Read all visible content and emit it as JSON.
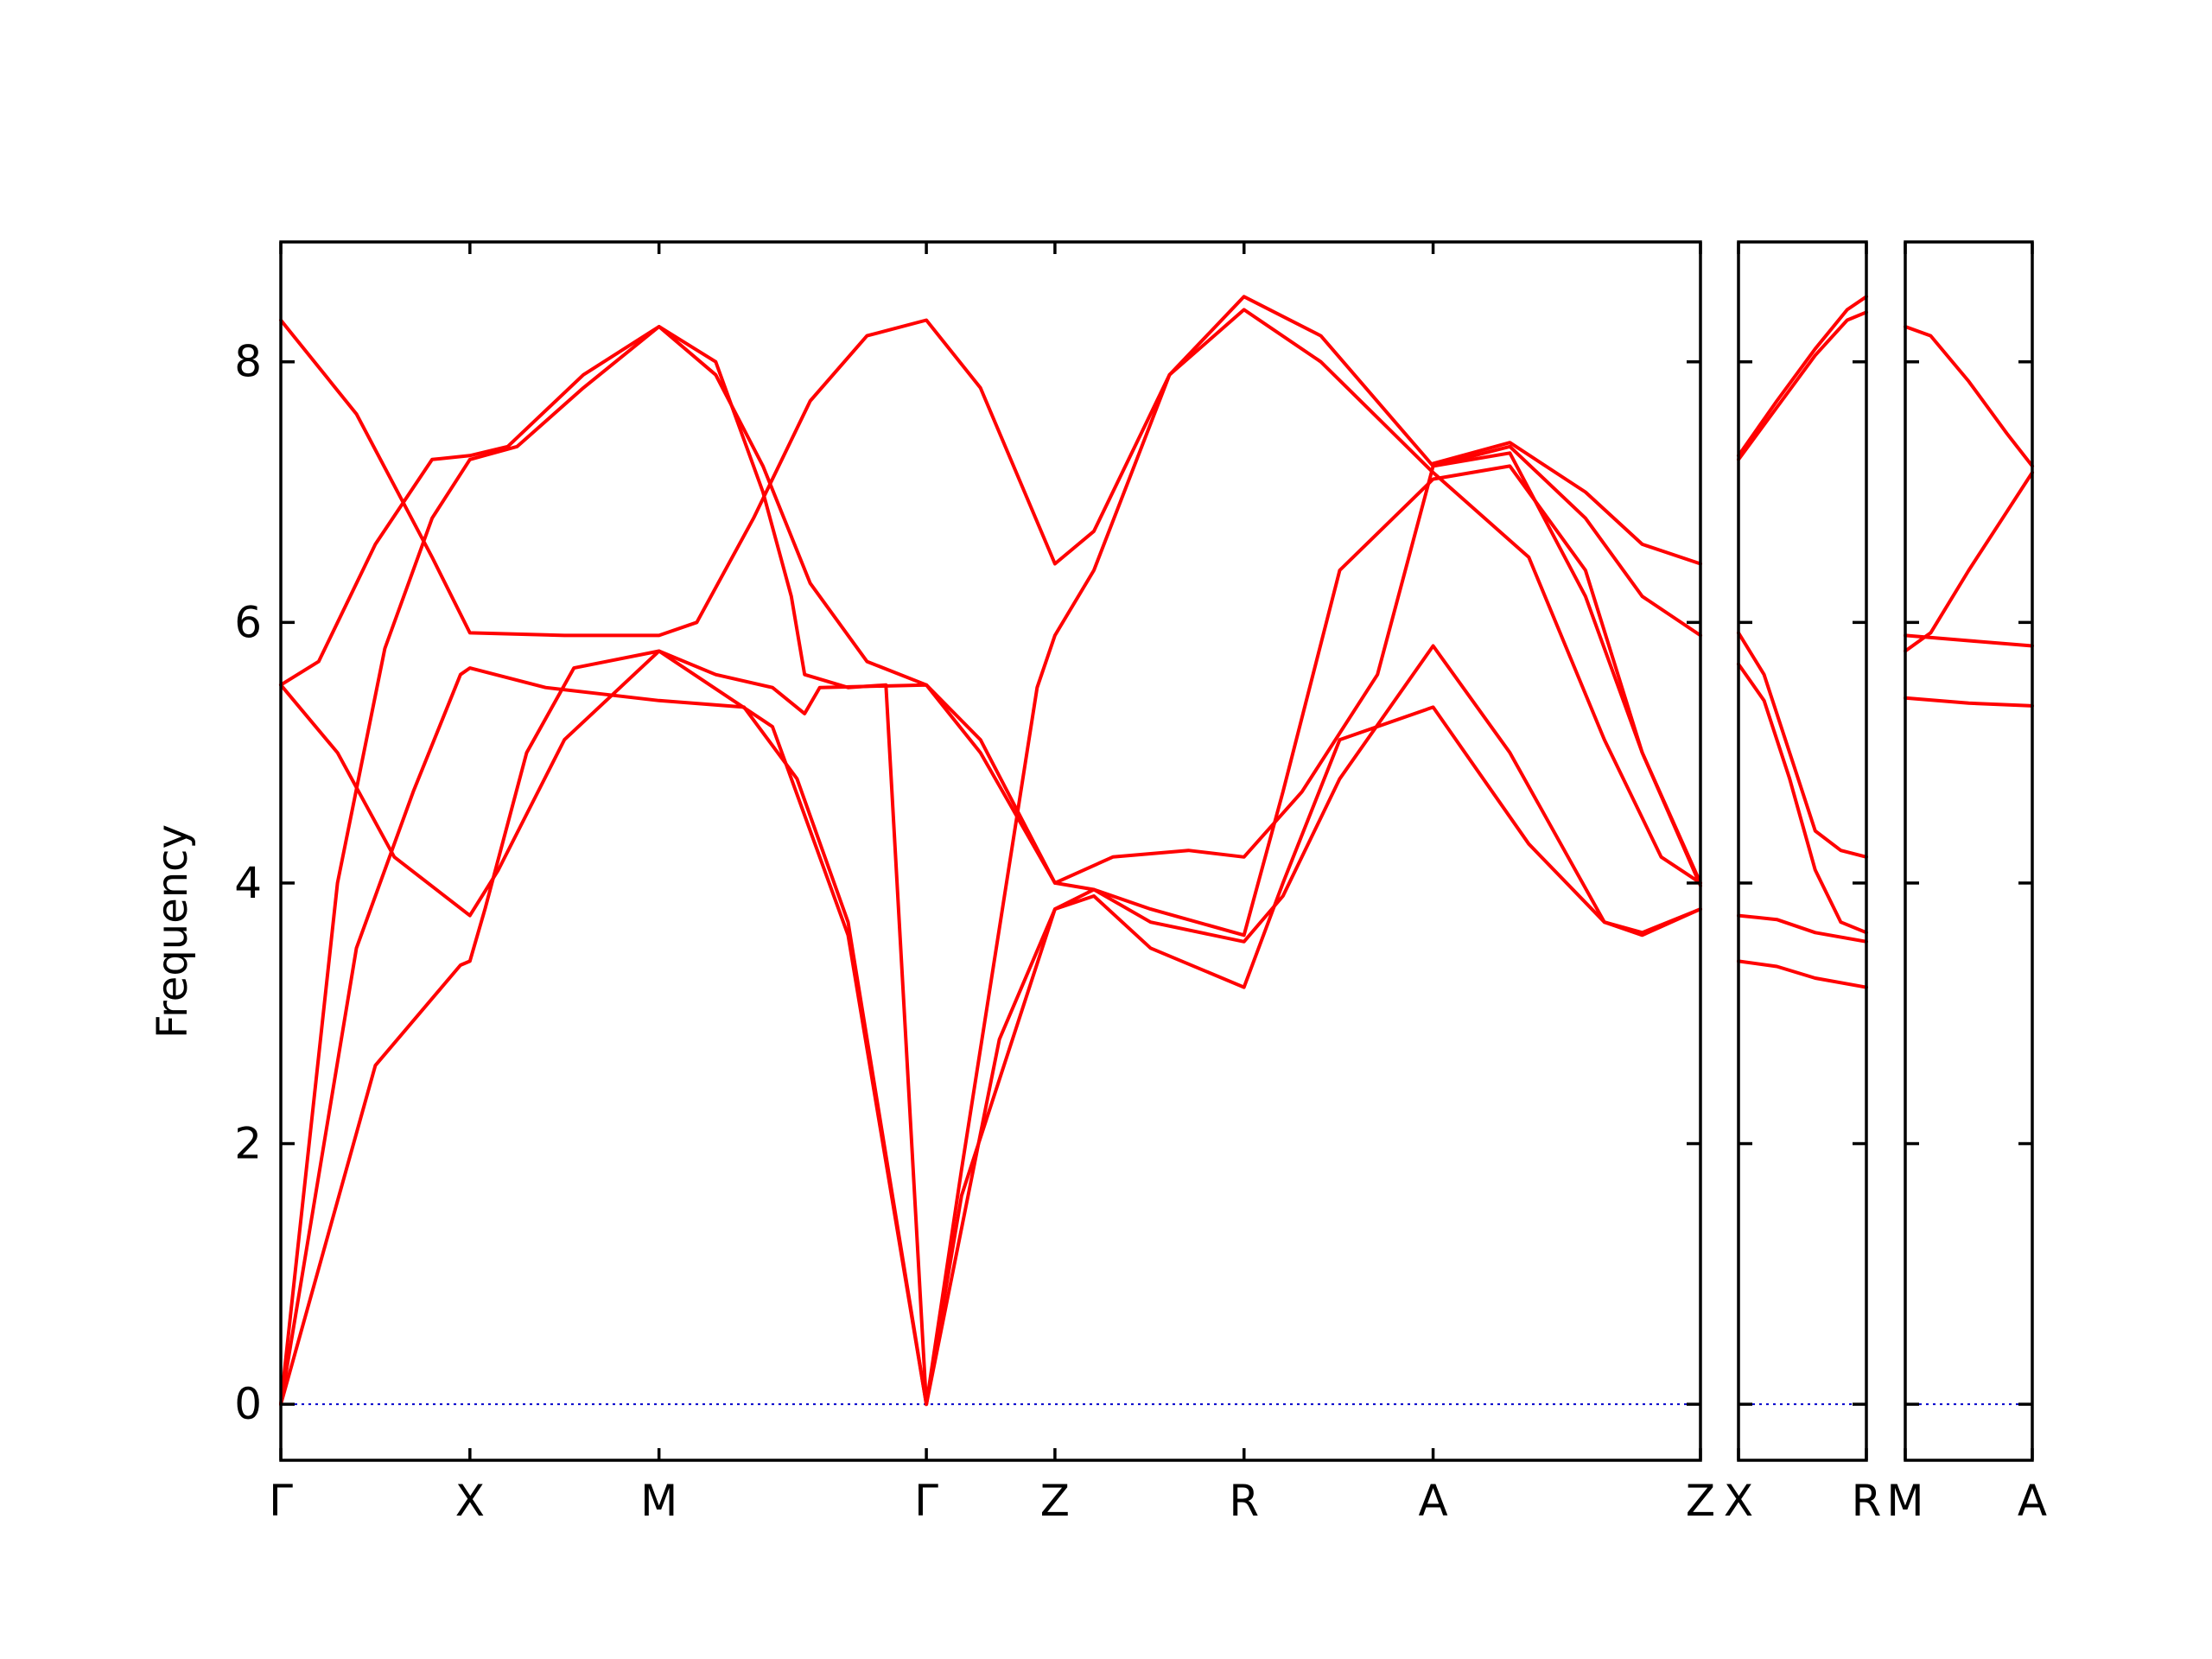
{
  "chart_data": {
    "type": "line",
    "title": "",
    "xlabel": "",
    "ylabel": "Frequency",
    "ylim": [
      -0.43,
      8.92
    ],
    "yticks": [
      0,
      2,
      4,
      6,
      8
    ],
    "grid": false,
    "legend": "none",
    "colors": {
      "band": "#ff0000",
      "zero_line": "#0000cc",
      "axes": "#000000"
    },
    "panels": [
      {
        "labels": [
          "Γ",
          "X",
          "M",
          "Γ",
          "Z",
          "R",
          "A",
          "Z"
        ],
        "segments": [
          {
            "from": "Γ",
            "to": "X",
            "length": 1.0
          },
          {
            "from": "X",
            "to": "M",
            "length": 1.0
          },
          {
            "from": "M",
            "to": "Γ",
            "length": 1.414
          },
          {
            "from": "Γ",
            "to": "Z",
            "length": 0.68
          },
          {
            "from": "Z",
            "to": "R",
            "length": 1.0
          },
          {
            "from": "R",
            "to": "A",
            "length": 1.0
          },
          {
            "from": "A",
            "to": "Z",
            "length": 1.414
          }
        ],
        "series": [
          {
            "values": [
              [
                0,
                0
              ],
              [
                0.5,
                2.6
              ],
              [
                0.95,
                3.37
              ],
              [
                1.0,
                3.4
              ],
              [
                1.08,
                3.8
              ],
              [
                1.3,
                5.0
              ],
              [
                1.55,
                5.65
              ],
              [
                2.0,
                5.78
              ],
              [
                2.6,
                5.2
              ],
              [
                3.0,
                3.6
              ],
              [
                3.414,
                0
              ],
              [
                3.8,
                2.8
              ],
              [
                4.094,
                3.8
              ],
              [
                4.3,
                3.9
              ],
              [
                4.6,
                3.5
              ],
              [
                5.094,
                3.2
              ],
              [
                5.3,
                4.0
              ],
              [
                5.6,
                5.1
              ],
              [
                6.094,
                5.35
              ],
              [
                6.6,
                4.3
              ],
              [
                7.0,
                3.7
              ],
              [
                7.2,
                3.62
              ],
              [
                7.508,
                3.8
              ]
            ]
          },
          {
            "values": [
              [
                0,
                0
              ],
              [
                0.4,
                3.5
              ],
              [
                0.7,
                4.7
              ],
              [
                0.95,
                5.6
              ],
              [
                1.0,
                5.65
              ],
              [
                1.4,
                5.5
              ],
              [
                2.0,
                5.4
              ],
              [
                2.45,
                5.35
              ],
              [
                2.73,
                4.8
              ],
              [
                3.0,
                3.7
              ],
              [
                3.414,
                0
              ],
              [
                3.6,
                1.6
              ],
              [
                4.094,
                3.8
              ],
              [
                4.3,
                3.95
              ],
              [
                4.6,
                3.7
              ],
              [
                5.094,
                3.55
              ],
              [
                5.3,
                3.9
              ],
              [
                5.6,
                4.8
              ],
              [
                6.094,
                5.82
              ],
              [
                6.5,
                5.0
              ],
              [
                7.0,
                3.7
              ],
              [
                7.2,
                3.6
              ],
              [
                7.508,
                3.8
              ]
            ]
          },
          {
            "values": [
              [
                0,
                0
              ],
              [
                0.3,
                4.0
              ],
              [
                0.55,
                5.8
              ],
              [
                0.8,
                6.8
              ],
              [
                1.0,
                7.25
              ],
              [
                1.25,
                7.35
              ],
              [
                1.6,
                7.8
              ],
              [
                2.0,
                8.27
              ],
              [
                2.3,
                8.0
              ],
              [
                2.55,
                7.0
              ],
              [
                2.7,
                6.2
              ],
              [
                2.77,
                5.6
              ],
              [
                3.0,
                5.5
              ],
              [
                3.2,
                5.52
              ],
              [
                3.414,
                0
              ],
              [
                3.6,
                1.8
              ],
              [
                4.0,
                5.5
              ],
              [
                4.094,
                5.9
              ],
              [
                4.3,
                6.4
              ],
              [
                4.7,
                7.9
              ],
              [
                5.094,
                8.4
              ],
              [
                5.5,
                8.0
              ],
              [
                6.094,
                7.15
              ],
              [
                6.6,
                6.5
              ],
              [
                7.0,
                5.1
              ],
              [
                7.3,
                4.2
              ],
              [
                7.508,
                4.0
              ]
            ]
          },
          {
            "values": [
              [
                0,
                5.52
              ],
              [
                0.2,
                5.7
              ],
              [
                0.5,
                6.6
              ],
              [
                0.8,
                7.25
              ],
              [
                1.0,
                7.28
              ],
              [
                1.2,
                7.35
              ],
              [
                1.6,
                7.9
              ],
              [
                2.0,
                8.27
              ],
              [
                2.3,
                7.9
              ],
              [
                2.55,
                7.2
              ],
              [
                2.8,
                6.3
              ],
              [
                3.1,
                5.7
              ],
              [
                3.414,
                5.52
              ],
              [
                3.7,
                5.0
              ],
              [
                4.094,
                4.0
              ],
              [
                4.3,
                3.95
              ],
              [
                4.6,
                3.8
              ],
              [
                5.094,
                3.6
              ],
              [
                5.3,
                4.7
              ],
              [
                5.6,
                6.4
              ],
              [
                6.094,
                7.1
              ],
              [
                6.5,
                7.2
              ],
              [
                6.9,
                6.4
              ],
              [
                7.2,
                5.0
              ],
              [
                7.508,
                3.98
              ]
            ]
          },
          {
            "values": [
              [
                0,
                5.52
              ],
              [
                0.3,
                5.0
              ],
              [
                0.6,
                4.2
              ],
              [
                1.0,
                3.75
              ],
              [
                1.15,
                4.1
              ],
              [
                1.5,
                5.1
              ],
              [
                2.0,
                5.78
              ],
              [
                2.3,
                5.6
              ],
              [
                2.6,
                5.5
              ],
              [
                2.77,
                5.3
              ],
              [
                2.85,
                5.5
              ],
              [
                3.414,
                5.52
              ],
              [
                3.7,
                5.1
              ],
              [
                4.094,
                4.0
              ],
              [
                4.4,
                4.2
              ],
              [
                4.8,
                4.25
              ],
              [
                5.094,
                4.2
              ],
              [
                5.4,
                4.7
              ],
              [
                5.8,
                5.6
              ],
              [
                6.094,
                7.2
              ],
              [
                6.5,
                7.3
              ],
              [
                6.9,
                6.2
              ],
              [
                7.2,
                5.0
              ],
              [
                7.508,
                4.0
              ]
            ]
          },
          {
            "values": [
              [
                0,
                8.32
              ],
              [
                0.4,
                7.6
              ],
              [
                0.8,
                6.5
              ],
              [
                1.0,
                5.92
              ],
              [
                1.5,
                5.9
              ],
              [
                2.0,
                5.9
              ],
              [
                2.2,
                6.0
              ],
              [
                2.5,
                6.8
              ],
              [
                2.8,
                7.7
              ],
              [
                3.1,
                8.2
              ],
              [
                3.414,
                8.32
              ],
              [
                3.7,
                7.8
              ],
              [
                4.094,
                6.45
              ],
              [
                4.3,
                6.7
              ],
              [
                4.7,
                7.9
              ],
              [
                5.094,
                8.5
              ],
              [
                5.5,
                8.2
              ],
              [
                6.094,
                7.2
              ],
              [
                6.5,
                7.35
              ],
              [
                6.9,
                6.8
              ],
              [
                7.2,
                6.2
              ],
              [
                7.508,
                5.9
              ]
            ]
          },
          {
            "values": [
              [
                6.094,
                7.22
              ],
              [
                6.5,
                7.38
              ],
              [
                6.9,
                7.0
              ],
              [
                7.2,
                6.6
              ],
              [
                7.508,
                6.45
              ]
            ]
          }
        ]
      },
      {
        "labels": [
          "X",
          "R"
        ],
        "segments": [
          {
            "from": "X",
            "to": "R",
            "length": 1.0
          }
        ],
        "series": [
          {
            "values": [
              [
                0,
                7.28
              ],
              [
                0.3,
                7.7
              ],
              [
                0.6,
                8.1
              ],
              [
                0.85,
                8.4
              ],
              [
                1.0,
                8.5
              ]
            ]
          },
          {
            "values": [
              [
                0,
                7.25
              ],
              [
                0.3,
                7.65
              ],
              [
                0.6,
                8.05
              ],
              [
                0.85,
                8.32
              ],
              [
                1.0,
                8.38
              ]
            ]
          },
          {
            "values": [
              [
                0,
                5.92
              ],
              [
                0.2,
                5.6
              ],
              [
                0.4,
                5.0
              ],
              [
                0.6,
                4.4
              ],
              [
                0.8,
                4.25
              ],
              [
                1.0,
                4.2
              ]
            ]
          },
          {
            "values": [
              [
                0,
                5.68
              ],
              [
                0.2,
                5.4
              ],
              [
                0.4,
                4.8
              ],
              [
                0.6,
                4.1
              ],
              [
                0.8,
                3.7
              ],
              [
                1.0,
                3.62
              ]
            ]
          },
          {
            "values": [
              [
                0,
                3.75
              ],
              [
                0.3,
                3.72
              ],
              [
                0.6,
                3.62
              ],
              [
                1.0,
                3.55
              ]
            ]
          },
          {
            "values": [
              [
                0,
                3.4
              ],
              [
                0.3,
                3.36
              ],
              [
                0.6,
                3.27
              ],
              [
                1.0,
                3.2
              ]
            ]
          }
        ]
      },
      {
        "labels": [
          "M",
          "A"
        ],
        "segments": [
          {
            "from": "M",
            "to": "A",
            "length": 1.0
          }
        ],
        "series": [
          {
            "values": [
              [
                0,
                8.27
              ],
              [
                0.2,
                8.2
              ],
              [
                0.5,
                7.85
              ],
              [
                0.8,
                7.45
              ],
              [
                1.0,
                7.2
              ]
            ]
          },
          {
            "values": [
              [
                0,
                5.78
              ],
              [
                0.2,
                5.92
              ],
              [
                0.5,
                6.4
              ],
              [
                0.8,
                6.85
              ],
              [
                1.0,
                7.15
              ]
            ]
          },
          {
            "values": [
              [
                0,
                5.9
              ],
              [
                0.5,
                5.86
              ],
              [
                1.0,
                5.82
              ]
            ]
          },
          {
            "values": [
              [
                0,
                5.42
              ],
              [
                0.5,
                5.38
              ],
              [
                1.0,
                5.36
              ]
            ]
          }
        ]
      }
    ]
  }
}
